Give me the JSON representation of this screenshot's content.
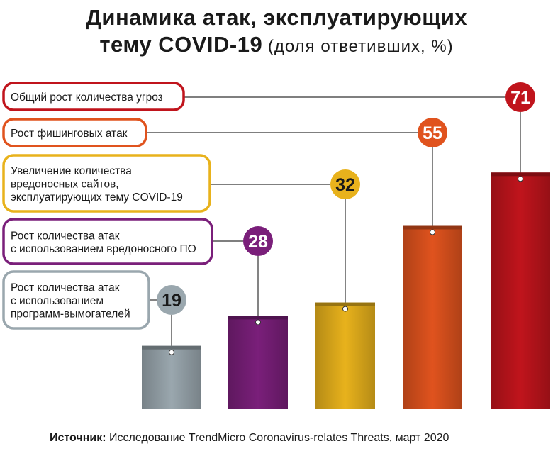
{
  "title": {
    "line1": "Динамика атак, эксплуатирующих",
    "line2_main": "тему COVID-19",
    "line2_sub": " (доля ответивших, %)"
  },
  "source": {
    "label": "Источник:",
    "text": " Исследование TrendMicro Coronavirus-relates Threats, март 2020"
  },
  "chart_data": {
    "type": "bar",
    "title": "Динамика атак, эксплуатирующих тему COVID-19 (доля ответивших, %)",
    "unit": "%",
    "categories": [
      "Рост количества атак с использованием программ-вымогателей",
      "Рост количества атак с использованием вредоносного ПО",
      "Увеличение количества вредоносных сайтов, эксплуатирующих тему COVID-19",
      "Рост фишинговых атак",
      "Общий рост количества угроз"
    ],
    "values": [
      19,
      28,
      32,
      55,
      71
    ],
    "label_lines": [
      [
        "Рост количества атак",
        "с использованием",
        "программ-вымогателей"
      ],
      [
        "Рост количества атак",
        "с использованием вредоносного ПО"
      ],
      [
        "Увеличение количества",
        "вредоносных сайтов,",
        "эксплуатирующих тему COVID-19"
      ],
      [
        "Рост фишинговых атак"
      ],
      [
        "Общий рост количества угроз"
      ]
    ],
    "colors": [
      "#9aa7ae",
      "#7a1f7a",
      "#e8b21c",
      "#e0531e",
      "#c0141c"
    ],
    "grid": false,
    "legend": "left"
  }
}
